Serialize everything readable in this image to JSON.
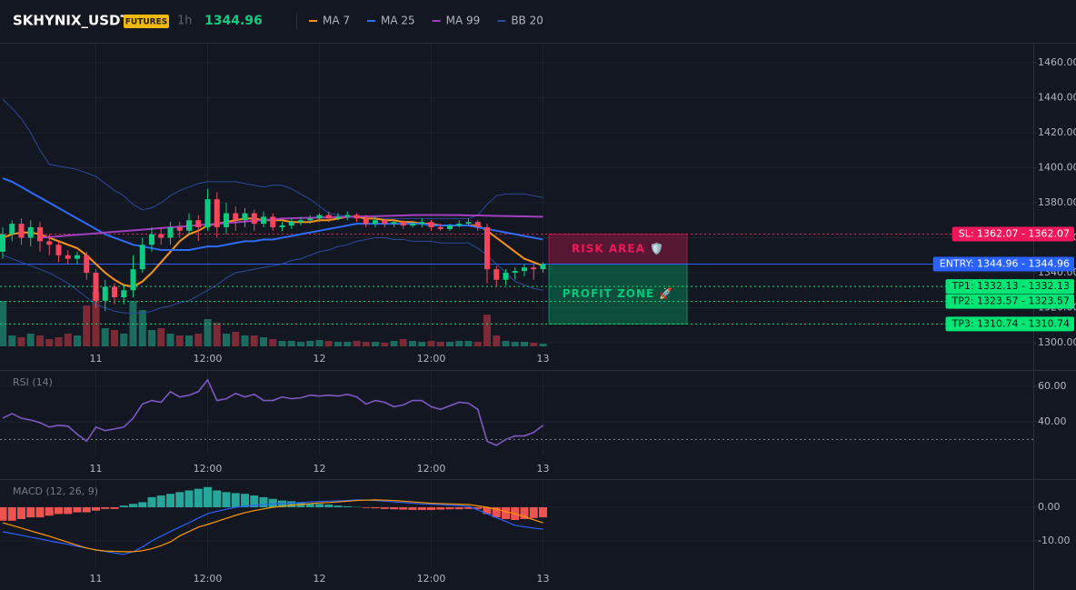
{
  "header": {
    "symbol": "SKHYNIX_USDT",
    "badge": "FUTURES",
    "interval": "1h",
    "price": 1344.96
  },
  "chart_data": [
    {
      "type": "candlestick",
      "categories": [
        null,
        null,
        null,
        null,
        null,
        null,
        null,
        null,
        null,
        null,
        "11",
        null,
        null,
        null,
        null,
        null,
        null,
        null,
        null,
        null,
        null,
        null,
        "12:00",
        null,
        null,
        null,
        null,
        null,
        null,
        null,
        null,
        null,
        null,
        null,
        "12",
        null,
        null,
        null,
        null,
        null,
        null,
        null,
        null,
        null,
        null,
        null,
        "12:00",
        null,
        null,
        null,
        null,
        null,
        null,
        null,
        null,
        null,
        null,
        null,
        "13"
      ],
      "open": [
        1352,
        1362,
        1368,
        1360,
        1366,
        1358,
        1356,
        1350,
        1348,
        1350,
        1340,
        1324,
        1332,
        1326,
        1330,
        1342,
        1356,
        1362,
        1360,
        1366,
        1364,
        1370,
        1366,
        1382,
        1366,
        1374,
        1370,
        1374,
        1368,
        1372,
        1366,
        1367,
        1369,
        1370,
        1371,
        1373,
        1371,
        1372,
        1373,
        1371,
        1368,
        1370,
        1368,
        1369,
        1367,
        1368,
        1369,
        1366,
        1365,
        1367,
        1368,
        1369,
        1366,
        1342,
        1336,
        1340,
        1341,
        1343,
        1342
      ],
      "high": [
        1366,
        1370,
        1371,
        1370,
        1369,
        1362,
        1358,
        1353,
        1352,
        1352,
        1342,
        1336,
        1334,
        1333,
        1350,
        1360,
        1366,
        1366,
        1369,
        1369,
        1374,
        1373,
        1388,
        1386,
        1380,
        1378,
        1377,
        1376,
        1375,
        1374,
        1369,
        1371,
        1372,
        1373,
        1374,
        1375,
        1374,
        1375,
        1374,
        1373,
        1372,
        1371,
        1370,
        1370,
        1369,
        1371,
        1370,
        1368,
        1368,
        1370,
        1371,
        1370,
        1368,
        1344,
        1342,
        1343,
        1345,
        1345,
        1346
      ],
      "low": [
        1348,
        1358,
        1356,
        1355,
        1352,
        1350,
        1346,
        1345,
        1345,
        1336,
        1320,
        1318,
        1322,
        1322,
        1326,
        1340,
        1352,
        1356,
        1356,
        1360,
        1362,
        1358,
        1364,
        1360,
        1362,
        1364,
        1366,
        1364,
        1366,
        1364,
        1364,
        1365,
        1367,
        1368,
        1369,
        1369,
        1370,
        1370,
        1369,
        1366,
        1366,
        1366,
        1366,
        1365,
        1366,
        1366,
        1364,
        1364,
        1364,
        1366,
        1367,
        1364,
        1334,
        1332,
        1333,
        1336,
        1338,
        1336,
        1340
      ],
      "close": [
        1362,
        1368,
        1360,
        1366,
        1358,
        1356,
        1350,
        1348,
        1350,
        1340,
        1324,
        1332,
        1326,
        1330,
        1342,
        1356,
        1362,
        1360,
        1366,
        1364,
        1370,
        1366,
        1382,
        1366,
        1374,
        1370,
        1374,
        1368,
        1372,
        1366,
        1367,
        1369,
        1370,
        1371,
        1373,
        1371,
        1372,
        1373,
        1371,
        1368,
        1370,
        1368,
        1369,
        1367,
        1368,
        1369,
        1366,
        1365,
        1367,
        1368,
        1369,
        1366,
        1342,
        1336,
        1340,
        1341,
        1343,
        1342,
        1344.96
      ],
      "up_color": "#0ecb81",
      "down_color": "#f6465d",
      "volume": {
        "values": [
          50,
          12,
          10,
          14,
          12,
          8,
          10,
          14,
          12,
          45,
          60,
          20,
          18,
          14,
          50,
          40,
          18,
          20,
          14,
          12,
          12,
          14,
          30,
          26,
          14,
          16,
          12,
          12,
          10,
          8,
          6,
          6,
          5,
          6,
          7,
          6,
          5,
          5,
          6,
          5,
          5,
          4,
          6,
          8,
          6,
          5,
          6,
          5,
          5,
          6,
          6,
          5,
          35,
          12,
          6,
          5,
          5,
          4,
          3
        ],
        "up_color": "#1b6b5e",
        "down_color": "#7c2a36"
      },
      "series": [
        {
          "name": "MA 7",
          "color": "#f7931a",
          "values": [
            1360,
            1362,
            1363,
            1363,
            1362,
            1360,
            1358,
            1356,
            1354,
            1350,
            1345,
            1340,
            1336,
            1333,
            1332,
            1335,
            1340,
            1346,
            1352,
            1358,
            1362,
            1364,
            1367,
            1368,
            1369,
            1370,
            1371,
            1371,
            1370,
            1370,
            1370,
            1369,
            1369,
            1369,
            1370,
            1370,
            1371,
            1372,
            1372,
            1371,
            1371,
            1370,
            1370,
            1369,
            1369,
            1368,
            1368,
            1367,
            1367,
            1367,
            1367,
            1367,
            1364,
            1360,
            1356,
            1352,
            1348,
            1346,
            1344
          ]
        },
        {
          "name": "MA 25",
          "color": "#2f6cf6",
          "values": [
            1394,
            1392,
            1389,
            1386,
            1383,
            1380,
            1377,
            1374,
            1371,
            1368,
            1365,
            1362,
            1360,
            1358,
            1356,
            1355,
            1354,
            1353,
            1353,
            1353,
            1353,
            1354,
            1355,
            1355,
            1356,
            1357,
            1358,
            1358,
            1359,
            1359,
            1360,
            1361,
            1362,
            1363,
            1364,
            1365,
            1366,
            1367,
            1368,
            1368,
            1368,
            1368,
            1368,
            1368,
            1368,
            1368,
            1367,
            1367,
            1367,
            1367,
            1367,
            1366,
            1365,
            1364,
            1363,
            1362,
            1361,
            1360,
            1359
          ]
        },
        {
          "name": "MA 99",
          "color": "#a23ec0",
          "values": [
            null,
            null,
            null,
            null,
            1360,
            1360.4,
            1360.8,
            1361.3,
            1361.7,
            1362.1,
            1362.5,
            1363,
            1363.4,
            1363.8,
            1364.2,
            1364.6,
            1365.1,
            1365.5,
            1365.9,
            1366.3,
            1366.7,
            1367.2,
            1367.6,
            1368,
            1368.4,
            1368.8,
            1369.3,
            1369.7,
            1370.1,
            1370.5,
            1371,
            1371.1,
            1371.3,
            1371.4,
            1371.5,
            1371.7,
            1371.8,
            1371.9,
            1372.1,
            1372.2,
            1372.3,
            1372.5,
            1372.6,
            1372.7,
            1372.9,
            1373,
            1373,
            1373,
            1372.9,
            1372.9,
            1372.8,
            1372.7,
            1372.6,
            1372.5,
            1372.4,
            1372.3,
            1372.2,
            1372.1,
            1372
          ]
        }
      ],
      "bands": {
        "name": "BB 20",
        "color": "#2a4a9a",
        "upper": [
          1439,
          1434,
          1428,
          1420,
          1410,
          1402,
          1401,
          1400,
          1399,
          1397,
          1395,
          1391,
          1387,
          1384,
          1379,
          1376,
          1377,
          1380,
          1384,
          1387,
          1389,
          1391,
          1392,
          1392,
          1392,
          1392,
          1391,
          1390,
          1389,
          1390,
          1390,
          1388,
          1385,
          1382,
          1378,
          1374,
          1373,
          1372,
          1372,
          1371,
          1371,
          1371,
          1371,
          1371,
          1371,
          1371,
          1371,
          1371,
          1371,
          1371,
          1371,
          1373,
          1379,
          1384,
          1385,
          1385,
          1385,
          1384,
          1383
        ],
        "lower": [
          1350,
          1348,
          1346,
          1344,
          1342,
          1340,
          1337,
          1334,
          1330,
          1326,
          1322,
          1320,
          1318,
          1317,
          1317,
          1317,
          1318,
          1320,
          1321,
          1323,
          1324,
          1327,
          1330,
          1333,
          1337,
          1340,
          1341,
          1342,
          1343,
          1344,
          1345,
          1347,
          1348,
          1350,
          1352,
          1353,
          1355,
          1356,
          1358,
          1359,
          1360,
          1360,
          1359,
          1359,
          1358,
          1358,
          1358,
          1357,
          1357,
          1357,
          1357,
          1354,
          1350,
          1345,
          1340,
          1335,
          1333,
          1331,
          1330
        ]
      },
      "ylim": [
        1296.9,
        1470.9
      ],
      "yticks": [
        {
          "value": 1300,
          "label": "1300.00"
        },
        {
          "value": 1320,
          "label": "1320.00"
        },
        {
          "value": 1340,
          "label": "1340.00"
        },
        {
          "value": 1360,
          "label": "1360.00"
        },
        {
          "value": 1380,
          "label": "1380.00"
        },
        {
          "value": 1400,
          "label": "1400.00"
        },
        {
          "value": 1420,
          "label": "1420.00"
        },
        {
          "value": 1440,
          "label": "1440.00"
        },
        {
          "value": 1460,
          "label": "1460.00"
        }
      ],
      "grid": true,
      "levels": [
        {
          "label": "SL: 1362.07 - 1362.07",
          "value": 1362.07,
          "color": "#f0185a",
          "text_color": "#ffffff",
          "style": "dotted"
        },
        {
          "label": "ENTRY: 1344.96 - 1344.96",
          "value": 1344.96,
          "color": "#2962ff",
          "text_color": "#ffffff",
          "style": "solid"
        },
        {
          "label": "TP1: 1332.13 - 1332.13",
          "value": 1332.13,
          "color": "#00e676",
          "text_color": "#0b1a12",
          "style": "dotted"
        },
        {
          "label": "TP2: 1323.57 - 1323.57",
          "value": 1323.57,
          "color": "#00e676",
          "text_color": "#0b1a12",
          "style": "dotted"
        },
        {
          "label": "TP3: 1310.74 - 1310.74",
          "value": 1310.74,
          "color": "#00e676",
          "text_color": "#0b1a12",
          "style": "dotted"
        }
      ],
      "zones": [
        {
          "label": "RISK AREA 🛡️",
          "range": [
            1344.96,
            1362.07
          ],
          "color": "#f0185a"
        },
        {
          "label": "PROFIT ZONE 🚀",
          "range": [
            1310.74,
            1344.96
          ],
          "color": "#00c97a"
        }
      ]
    },
    {
      "type": "line",
      "title": "RSI (14)",
      "color": "#7e57c2",
      "values": [
        42,
        44.6,
        42,
        41,
        39.5,
        37,
        38,
        37.5,
        33,
        29,
        37,
        35,
        36,
        37,
        42,
        50,
        52,
        51,
        57,
        54,
        55,
        57,
        63.6,
        52,
        53,
        56,
        54,
        55.5,
        52,
        52,
        54,
        53,
        53.5,
        55,
        54.5,
        55,
        54.5,
        55.5,
        54,
        50,
        52,
        51,
        48.5,
        49.5,
        52,
        52,
        48.5,
        47,
        49,
        51,
        50.5,
        47,
        29,
        26.7,
        30,
        32,
        32,
        34,
        38
      ],
      "ylim": [
        21.5,
        68.7
      ],
      "yticks": [
        {
          "value": 40,
          "label": "40.00"
        },
        {
          "value": 60,
          "label": "60.00"
        }
      ],
      "reference": 30
    },
    {
      "type": "macd",
      "title": "MACD (12, 26, 9)",
      "histogram": [
        -4,
        -4,
        -3.5,
        -3,
        -3,
        -2.5,
        -2,
        -2,
        -1.5,
        -1.5,
        -1,
        -0.5,
        -0.5,
        0.5,
        1,
        1.5,
        3,
        3.5,
        4,
        4.5,
        5,
        5.5,
        6,
        5,
        4.5,
        4.2,
        4,
        3.5,
        3,
        2.5,
        2,
        1.8,
        1.5,
        1.2,
        1,
        0.8,
        0.5,
        0.3,
        0.1,
        -0.2,
        -0.3,
        -0.5,
        -0.6,
        -0.7,
        -0.8,
        -0.8,
        -0.8,
        -0.7,
        -0.6,
        -0.6,
        -0.5,
        -0.5,
        -2,
        -3,
        -3.5,
        -3.8,
        -3.5,
        -3.2,
        -3
      ],
      "macd": [
        -7.3,
        -7.8,
        -8.3,
        -8.9,
        -9.4,
        -10,
        -10.5,
        -11,
        -11.6,
        -12.1,
        -12.7,
        -13.1,
        -13.6,
        -14,
        -13.2,
        -11.8,
        -10,
        -8.6,
        -7.2,
        -5.9,
        -4.6,
        -3.2,
        -1.9,
        -1.2,
        -0.6,
        0,
        0.3,
        0.6,
        0.8,
        1,
        1.1,
        1.2,
        1.4,
        1.6,
        1.7,
        1.8,
        1.9,
        2,
        2.2,
        2.1,
        2,
        1.8,
        1.6,
        1.4,
        1.2,
        1,
        0.9,
        0.8,
        0.6,
        0.5,
        0.3,
        -0.8,
        -1.9,
        -3.1,
        -4.2,
        -5.4,
        -5.8,
        -6.2,
        -6.5
      ],
      "signal": [
        -4.6,
        -5.4,
        -6.2,
        -7,
        -7.8,
        -8.6,
        -9.5,
        -10.4,
        -11.3,
        -12.1,
        -12.7,
        -13,
        -13.1,
        -13.2,
        -13.2,
        -12.9,
        -12.3,
        -11.4,
        -10.3,
        -8.5,
        -7.2,
        -5.9,
        -5.1,
        -4.2,
        -3.3,
        -2.4,
        -1.6,
        -1,
        -0.5,
        0,
        0.3,
        0.6,
        0.8,
        1.1,
        1.3,
        1.4,
        1.6,
        1.8,
        2,
        2.1,
        2.2,
        2.1,
        2,
        1.8,
        1.6,
        1.4,
        1.2,
        1.1,
        1,
        0.9,
        0.8,
        0.4,
        0,
        -0.6,
        -1.3,
        -1.9,
        -2.8,
        -3.7,
        -4.6
      ],
      "up_color": "#26a69a",
      "down_color": "#ef5350",
      "macd_color": "#2962ff",
      "signal_color": "#ff9800",
      "ylim": [
        -18.1,
        8.1
      ],
      "yticks": [
        {
          "value": 0,
          "label": "0.00"
        },
        {
          "value": -10,
          "label": "-10.00"
        }
      ]
    }
  ]
}
